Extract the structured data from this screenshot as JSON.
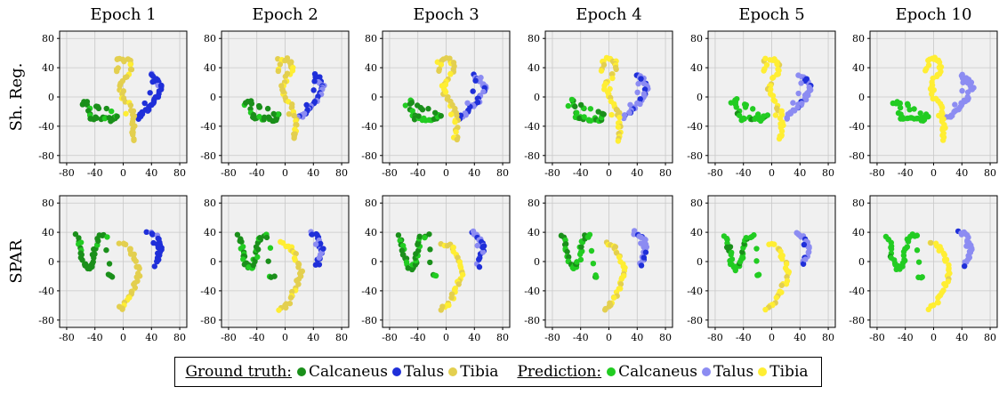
{
  "columns": [
    "Epoch 1",
    "Epoch 2",
    "Epoch 3",
    "Epoch 4",
    "Epoch 5",
    "Epoch 10"
  ],
  "rows": [
    "Sh. Reg.",
    "SPAR"
  ],
  "legend": {
    "ground_truth_title": "Ground truth:",
    "prediction_title": "Prediction:",
    "ground_truth": [
      {
        "label": "Calcaneus",
        "color": "#1a8f1a"
      },
      {
        "label": "Talus",
        "color": "#1f2fd9"
      },
      {
        "label": "Tibia",
        "color": "#e3cf4f"
      }
    ],
    "prediction": [
      {
        "label": "Calcaneus",
        "color": "#22cc22"
      },
      {
        "label": "Talus",
        "color": "#8c8cf2"
      },
      {
        "label": "Tibia",
        "color": "#ffee33"
      }
    ]
  },
  "chart_data": {
    "type": "scatter",
    "xlim": [
      -90,
      90
    ],
    "ylim": [
      -90,
      90
    ],
    "xticks": [
      "-80",
      "-40",
      "0",
      "40",
      "80"
    ],
    "yticks": [
      "80",
      "40",
      "0",
      "-40",
      "-80"
    ],
    "xtick_values": [
      -80,
      -40,
      0,
      40,
      80
    ],
    "ytick_values": [
      80,
      40,
      0,
      -40,
      -80
    ],
    "grid": true,
    "series_by_row": [
      {
        "row": "Sh. Reg.",
        "clusters": {
          "Calcaneus": [
            [
              -55,
              -10
            ],
            [
              -50,
              -5
            ],
            [
              -48,
              -20
            ],
            [
              -45,
              -30
            ],
            [
              -40,
              -28
            ],
            [
              -30,
              -30
            ],
            [
              -22,
              -30
            ],
            [
              -15,
              -32
            ],
            [
              -12,
              -28
            ],
            [
              -8,
              -25
            ],
            [
              -35,
              -15
            ],
            [
              -40,
              -10
            ]
          ],
          "Talus": [
            [
              40,
              30
            ],
            [
              45,
              25
            ],
            [
              50,
              20
            ],
            [
              55,
              15
            ],
            [
              52,
              8
            ],
            [
              48,
              0
            ],
            [
              45,
              -5
            ],
            [
              40,
              -10
            ],
            [
              35,
              -15
            ],
            [
              30,
              -20
            ],
            [
              25,
              -25
            ],
            [
              20,
              -28
            ],
            [
              48,
              25
            ],
            [
              42,
              18
            ]
          ],
          "Tibia": [
            [
              -10,
              50
            ],
            [
              0,
              52
            ],
            [
              8,
              48
            ],
            [
              10,
              40
            ],
            [
              5,
              30
            ],
            [
              -2,
              20
            ],
            [
              -5,
              10
            ],
            [
              0,
              0
            ],
            [
              8,
              -10
            ],
            [
              12,
              -20
            ],
            [
              14,
              -30
            ],
            [
              15,
              -40
            ],
            [
              14,
              -50
            ],
            [
              13,
              -58
            ],
            [
              -8,
              42
            ],
            [
              -10,
              35
            ]
          ]
        }
      },
      {
        "row": "SPAR",
        "clusters": {
          "Calcaneus": [
            [
              -65,
              35
            ],
            [
              -62,
              25
            ],
            [
              -60,
              15
            ],
            [
              -58,
              5
            ],
            [
              -55,
              -5
            ],
            [
              -50,
              -10
            ],
            [
              -45,
              -5
            ],
            [
              -42,
              5
            ],
            [
              -40,
              15
            ],
            [
              -38,
              25
            ],
            [
              -35,
              35
            ],
            [
              -25,
              35
            ],
            [
              -20,
              -20
            ],
            [
              -15,
              -20
            ]
          ],
          "Talus": [
            [
              35,
              40
            ],
            [
              42,
              38
            ],
            [
              48,
              32
            ],
            [
              50,
              25
            ],
            [
              52,
              15
            ],
            [
              48,
              5
            ],
            [
              45,
              -5
            ],
            [
              55,
              20
            ],
            [
              40,
              25
            ]
          ],
          "Tibia": [
            [
              -5,
              25
            ],
            [
              5,
              22
            ],
            [
              12,
              15
            ],
            [
              15,
              5
            ],
            [
              20,
              -5
            ],
            [
              22,
              -15
            ],
            [
              20,
              -25
            ],
            [
              15,
              -35
            ],
            [
              10,
              -45
            ],
            [
              5,
              -55
            ],
            [
              0,
              -62
            ],
            [
              -10,
              -65
            ]
          ]
        }
      }
    ]
  }
}
